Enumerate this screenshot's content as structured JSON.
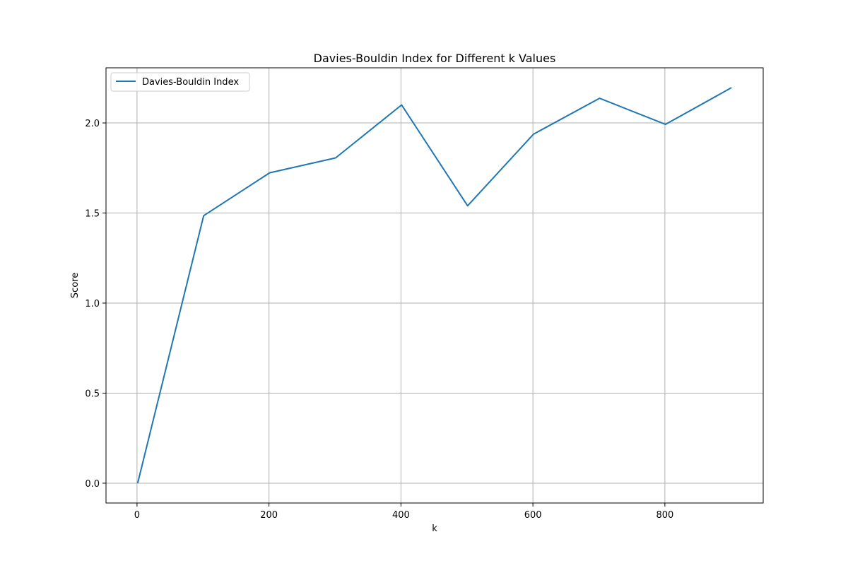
{
  "chart_data": {
    "type": "line",
    "title": "Davies-Bouldin Index for Different k Values",
    "xlabel": "k",
    "ylabel": "Score",
    "x": [
      1,
      101,
      201,
      301,
      401,
      501,
      601,
      701,
      801,
      901
    ],
    "series": [
      {
        "name": "Davies-Bouldin Index",
        "color": "#1f77b4",
        "values": [
          0.0,
          1.485,
          1.723,
          1.806,
          2.1,
          1.54,
          1.938,
          2.137,
          1.992,
          2.196
        ]
      }
    ],
    "xlim": [
      -47,
      949
    ],
    "ylim": [
      -0.11,
      2.306
    ],
    "xticks": [
      0,
      200,
      400,
      600,
      800
    ],
    "xtick_labels": [
      "0",
      "200",
      "400",
      "600",
      "800"
    ],
    "yticks": [
      0.0,
      0.5,
      1.0,
      1.5,
      2.0
    ],
    "ytick_labels": [
      "0.0",
      "0.5",
      "1.0",
      "1.5",
      "2.0"
    ],
    "grid": true,
    "legend_position": "upper-left"
  }
}
